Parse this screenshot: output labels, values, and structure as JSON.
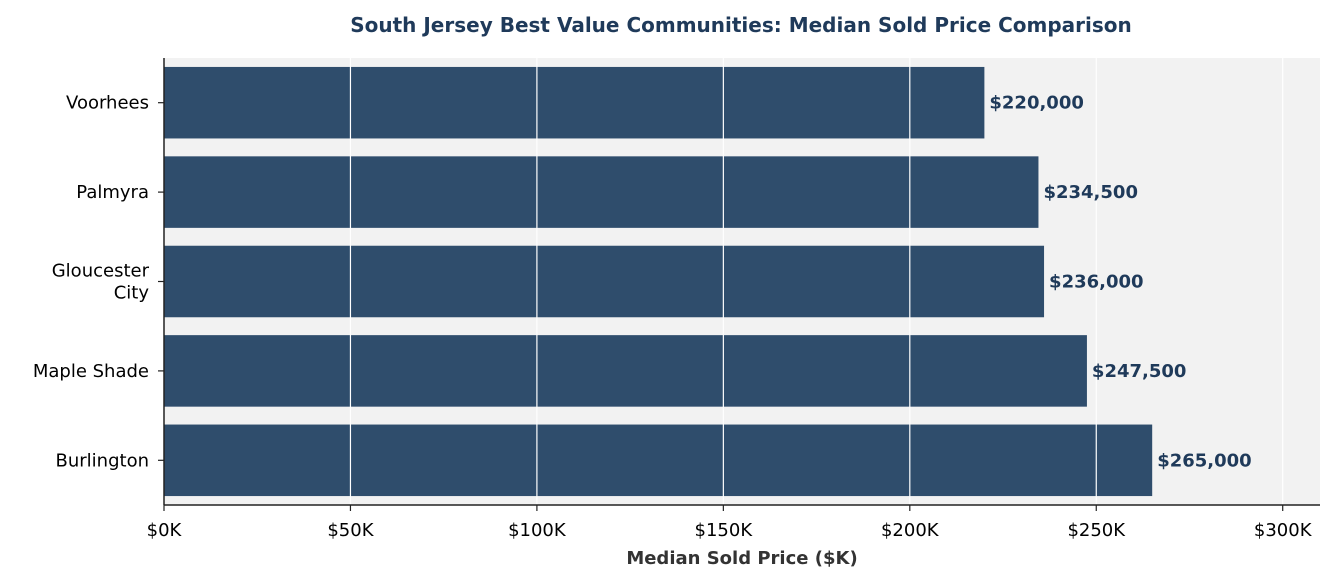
{
  "chart_data": {
    "type": "bar",
    "orientation": "horizontal",
    "title": "South Jersey Best Value Communities: Median Sold Price Comparison",
    "xlabel": "Median Sold Price ($K)",
    "ylabel": "",
    "categories": [
      "Voorhees",
      "Palmyra",
      "Gloucester City",
      "Maple Shade",
      "Burlington"
    ],
    "category_lines": [
      [
        "Voorhees"
      ],
      [
        "Palmyra"
      ],
      [
        "Gloucester",
        "City"
      ],
      [
        "Maple Shade"
      ],
      [
        "Burlington"
      ]
    ],
    "values": [
      220000,
      234500,
      236000,
      247500,
      265000
    ],
    "value_labels": [
      "$220,000",
      "$234,500",
      "$236,000",
      "$247,500",
      "$265,000"
    ],
    "xlim": [
      0,
      310000
    ],
    "xticks": [
      0,
      50000,
      100000,
      150000,
      200000,
      250000,
      300000
    ],
    "xtick_labels": [
      "$0K",
      "$50K",
      "$100K",
      "$150K",
      "$200K",
      "$250K",
      "$300K"
    ],
    "grid": "x",
    "colors": {
      "bar": "#2f4d6c",
      "plot_background": "#f2f2f2",
      "grid": "#ffffff",
      "title": "#1f3a5a",
      "value_label": "#1f3a5a",
      "axis": "#222222"
    }
  }
}
